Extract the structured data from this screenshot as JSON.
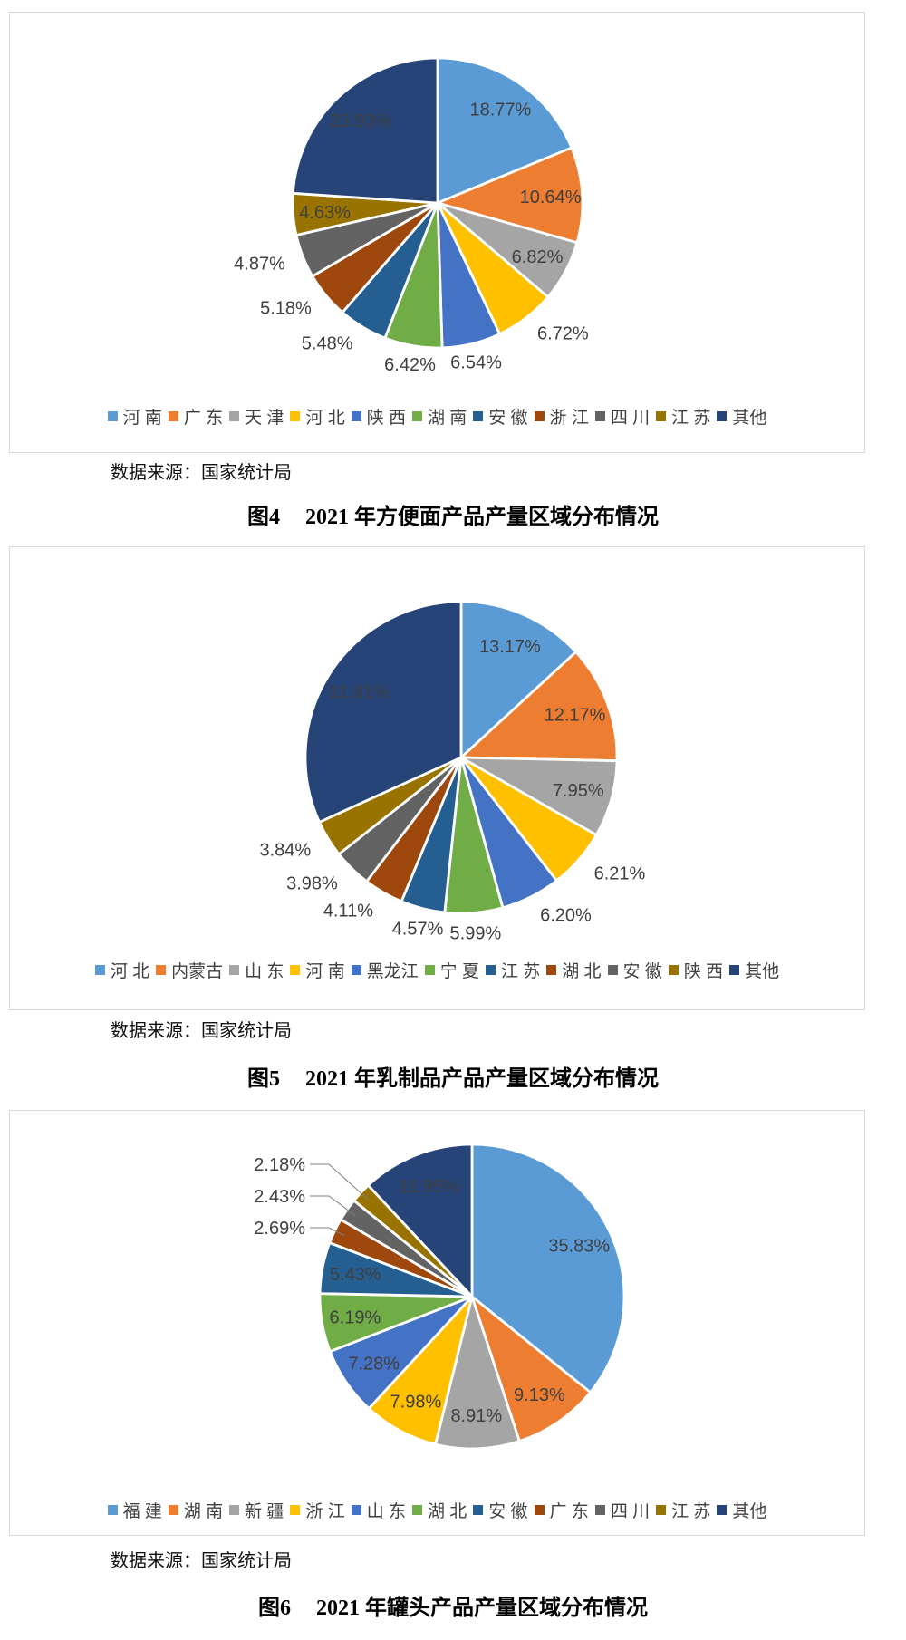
{
  "source_note": "数据来源：国家统计局",
  "styles": {
    "box_border": "#d9d9d9",
    "slice_stroke": "#ffffff",
    "label_color": "#3f3f3f",
    "leader_color": "#7f7f7f"
  },
  "chart_data": [
    {
      "type": "pie",
      "figure_label": "图4",
      "title": "2021 年方便面产品产量区域分布情况",
      "legend_position": "bottom",
      "start_angle": "12-oclock",
      "direction": "clockwise",
      "slices": [
        {
          "name": "河南",
          "legend": "河 南",
          "value": 18.77,
          "label": "18.77%",
          "color": "#5B9BD5",
          "label_pos": "in"
        },
        {
          "name": "广东",
          "legend": "广 东",
          "value": 10.64,
          "label": "10.64%",
          "color": "#ED7D31",
          "label_pos": "in"
        },
        {
          "name": "天津",
          "legend": "天 津",
          "value": 6.82,
          "label": "6.82%",
          "color": "#A5A5A5",
          "label_pos": "in"
        },
        {
          "name": "河北",
          "legend": "河 北",
          "value": 6.72,
          "label": "6.72%",
          "color": "#FFC000",
          "label_pos": "out"
        },
        {
          "name": "陕西",
          "legend": "陕 西",
          "value": 6.54,
          "label": "6.54%",
          "color": "#4472C4",
          "label_pos": "out"
        },
        {
          "name": "湖南",
          "legend": "湖 南",
          "value": 6.42,
          "label": "6.42%",
          "color": "#70AD47",
          "label_pos": "out"
        },
        {
          "name": "安徽",
          "legend": "安 徽",
          "value": 5.48,
          "label": "5.48%",
          "color": "#255E91",
          "label_pos": "out"
        },
        {
          "name": "浙江",
          "legend": "浙 江",
          "value": 5.18,
          "label": "5.18%",
          "color": "#9E480E",
          "label_pos": "out"
        },
        {
          "name": "四川",
          "legend": "四 川",
          "value": 4.87,
          "label": "4.87%",
          "color": "#636363",
          "label_pos": "out"
        },
        {
          "name": "江苏",
          "legend": "江 苏",
          "value": 4.63,
          "label": "4.63%",
          "color": "#997300",
          "label_pos": "in"
        },
        {
          "name": "其他",
          "legend": "其他",
          "value": 23.93,
          "label": "23.93%",
          "color": "#264478",
          "label_pos": "in"
        }
      ]
    },
    {
      "type": "pie",
      "figure_label": "图5",
      "title": "2021 年乳制品产品产量区域分布情况",
      "legend_position": "bottom",
      "start_angle": "12-oclock",
      "direction": "clockwise",
      "slices": [
        {
          "name": "河北",
          "legend": "河 北",
          "value": 13.17,
          "label": "13.17%",
          "color": "#5B9BD5",
          "label_pos": "in"
        },
        {
          "name": "内蒙古",
          "legend": "内蒙古",
          "value": 12.17,
          "label": "12.17%",
          "color": "#ED7D31",
          "label_pos": "in"
        },
        {
          "name": "山东",
          "legend": "山 东",
          "value": 7.95,
          "label": "7.95%",
          "color": "#A5A5A5",
          "label_pos": "in"
        },
        {
          "name": "河南",
          "legend": "河 南",
          "value": 6.21,
          "label": "6.21%",
          "color": "#FFC000",
          "label_pos": "out"
        },
        {
          "name": "黑龙江",
          "legend": "黑龙江",
          "value": 6.2,
          "label": "6.20%",
          "color": "#4472C4",
          "label_pos": "out"
        },
        {
          "name": "宁夏",
          "legend": "宁 夏",
          "value": 5.99,
          "label": "5.99%",
          "color": "#70AD47",
          "label_pos": "out"
        },
        {
          "name": "江苏",
          "legend": "江 苏",
          "value": 4.57,
          "label": "4.57%",
          "color": "#255E91",
          "label_pos": "out"
        },
        {
          "name": "湖北",
          "legend": "湖 北",
          "value": 4.11,
          "label": "4.11%",
          "color": "#9E480E",
          "label_pos": "out"
        },
        {
          "name": "安徽",
          "legend": "安 徽",
          "value": 3.98,
          "label": "3.98%",
          "color": "#636363",
          "label_pos": "out"
        },
        {
          "name": "陕西",
          "legend": "陕 西",
          "value": 3.84,
          "label": "3.84%",
          "color": "#997300",
          "label_pos": "out"
        },
        {
          "name": "其他",
          "legend": "其他",
          "value": 31.81,
          "label": "31.81%",
          "color": "#264478",
          "label_pos": "in"
        }
      ]
    },
    {
      "type": "pie",
      "figure_label": "图6",
      "title": "2021 年罐头产品产量区域分布情况",
      "legend_position": "bottom",
      "start_angle": "12-oclock",
      "direction": "clockwise",
      "slices": [
        {
          "name": "福建",
          "legend": "福 建",
          "value": 35.83,
          "label": "35.83%",
          "color": "#5B9BD5",
          "label_pos": "in"
        },
        {
          "name": "湖南",
          "legend": "湖 南",
          "value": 9.13,
          "label": "9.13%",
          "color": "#ED7D31",
          "label_pos": "in"
        },
        {
          "name": "新疆",
          "legend": "新 疆",
          "value": 8.91,
          "label": "8.91%",
          "color": "#A5A5A5",
          "label_pos": "in"
        },
        {
          "name": "浙江",
          "legend": "浙 江",
          "value": 7.98,
          "label": "7.98%",
          "color": "#FFC000",
          "label_pos": "in"
        },
        {
          "name": "山东",
          "legend": "山 东",
          "value": 7.28,
          "label": "7.28%",
          "color": "#4472C4",
          "label_pos": "in"
        },
        {
          "name": "湖北",
          "legend": "湖 北",
          "value": 6.19,
          "label": "6.19%",
          "color": "#70AD47",
          "label_pos": "in"
        },
        {
          "name": "安徽",
          "legend": "安 徽",
          "value": 5.43,
          "label": "5.43%",
          "color": "#255E91",
          "label_pos": "in"
        },
        {
          "name": "广东",
          "legend": "广 东",
          "value": 2.69,
          "label": "2.69%",
          "color": "#9E480E",
          "label_pos": "callout"
        },
        {
          "name": "四川",
          "legend": "四 川",
          "value": 2.43,
          "label": "2.43%",
          "color": "#636363",
          "label_pos": "callout"
        },
        {
          "name": "江苏",
          "legend": "江 苏",
          "value": 2.18,
          "label": "2.18%",
          "color": "#997300",
          "label_pos": "callout"
        },
        {
          "name": "其他",
          "legend": "其他",
          "value": 11.95,
          "label": "11.95%",
          "color": "#264478",
          "label_pos": "in"
        }
      ]
    }
  ]
}
